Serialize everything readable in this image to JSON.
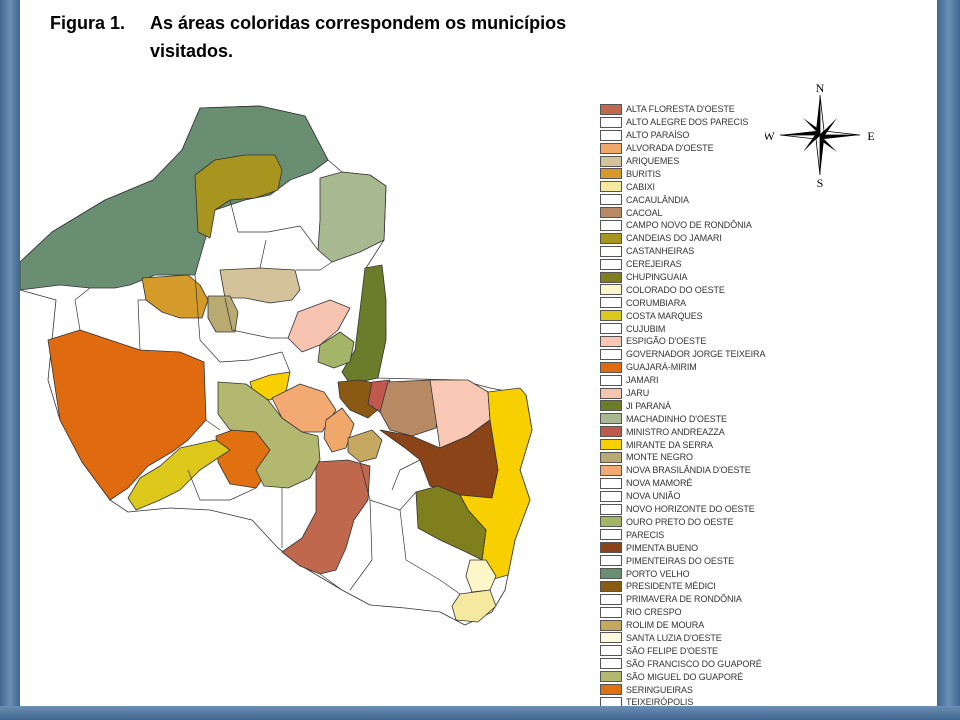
{
  "caption": {
    "label": "Figura 1.",
    "line1": "As áreas coloridas correspondem os municípios",
    "line2": "visitados."
  },
  "compass": {
    "n": "N",
    "s": "S",
    "e": "E",
    "w": "W"
  },
  "colors": {
    "frame": "#4a6f96",
    "outline": "#333333",
    "unvisited": "#ffffff"
  },
  "legend": [
    {
      "label": "ALTA FLORESTA D'OESTE",
      "color": "#c0684e"
    },
    {
      "label": "ALTO ALEGRE DOS PARECIS",
      "color": "#ffffff"
    },
    {
      "label": "ALTO PARAÍSO",
      "color": "#ffffff"
    },
    {
      "label": "ALVORADA D'OESTE",
      "color": "#f0a86a"
    },
    {
      "label": "ARIQUEMES",
      "color": "#d4c29a"
    },
    {
      "label": "BURITIS",
      "color": "#d49a2a"
    },
    {
      "label": "CABIXI",
      "color": "#f5e9a0"
    },
    {
      "label": "CACAULÂNDIA",
      "color": "#ffffff"
    },
    {
      "label": "CACOAL",
      "color": "#b88a64"
    },
    {
      "label": "CAMPO NOVO DE RONDÔNIA",
      "color": "#ffffff"
    },
    {
      "label": "CANDEIAS DO JAMARI",
      "color": "#a89520"
    },
    {
      "label": "CASTANHEIRAS",
      "color": "#ffffff"
    },
    {
      "label": "CEREJEIRAS",
      "color": "#ffffff"
    },
    {
      "label": "CHUPINGUAIA",
      "color": "#7f7f1e"
    },
    {
      "label": "COLORADO DO OESTE",
      "color": "#fdf6c8"
    },
    {
      "label": "CORUMBIARA",
      "color": "#ffffff"
    },
    {
      "label": "COSTA MARQUES",
      "color": "#dcc81a"
    },
    {
      "label": "CUJUBIM",
      "color": "#ffffff"
    },
    {
      "label": "ESPIGÃO D'OESTE",
      "color": "#f8c8b4"
    },
    {
      "label": "GOVERNADOR JORGE TEIXEIRA",
      "color": "#ffffff"
    },
    {
      "label": "GUAJARÁ-MIRIM",
      "color": "#e06a10"
    },
    {
      "label": "JAMARI",
      "color": "#ffffff"
    },
    {
      "label": "JARU",
      "color": "#f6c4b0"
    },
    {
      "label": "JI PARANÁ",
      "color": "#6b7c2a"
    },
    {
      "label": "MACHADINHO D'OESTE",
      "color": "#a8b890"
    },
    {
      "label": "MINISTRO ANDREAZZA",
      "color": "#c0584e"
    },
    {
      "label": "MIRANTE DA SERRA",
      "color": "#f8d000"
    },
    {
      "label": "MONTE NEGRO",
      "color": "#b8aa70"
    },
    {
      "label": "NOVA BRASILÂNDIA D'OESTE",
      "color": "#f2aa72"
    },
    {
      "label": "NOVA MAMORÉ",
      "color": "#ffffff"
    },
    {
      "label": "NOVA UNIÃO",
      "color": "#ffffff"
    },
    {
      "label": "NOVO HORIZONTE DO OESTE",
      "color": "#ffffff"
    },
    {
      "label": "OURO PRETO DO OESTE",
      "color": "#a4b468"
    },
    {
      "label": "PARECIS",
      "color": "#ffffff"
    },
    {
      "label": "PIMENTA BUENO",
      "color": "#8a4418"
    },
    {
      "label": "PIMENTEIRAS DO OESTE",
      "color": "#ffffff"
    },
    {
      "label": "PORTO VELHO",
      "color": "#6a8e72"
    },
    {
      "label": "PRESIDENTE MÉDICI",
      "color": "#8a5a14"
    },
    {
      "label": "PRIMAVERA DE RONDÔNIA",
      "color": "#ffffff"
    },
    {
      "label": "RIO CRESPO",
      "color": "#ffffff"
    },
    {
      "label": "ROLIM DE MOURA",
      "color": "#c4a860"
    },
    {
      "label": "SANTA LUZIA D'OESTE",
      "color": "#fefae0"
    },
    {
      "label": "SÃO FELIPE D'OESTE",
      "color": "#ffffff"
    },
    {
      "label": "SÃO FRANCISCO DO GUAPORÉ",
      "color": "#ffffff"
    },
    {
      "label": "SÃO MIGUEL DO GUAPORÉ",
      "color": "#b2b870"
    },
    {
      "label": "SERINGUEIRAS",
      "color": "#e07010"
    },
    {
      "label": "TEIXEIRÓPOLIS",
      "color": "#ffffff"
    }
  ]
}
